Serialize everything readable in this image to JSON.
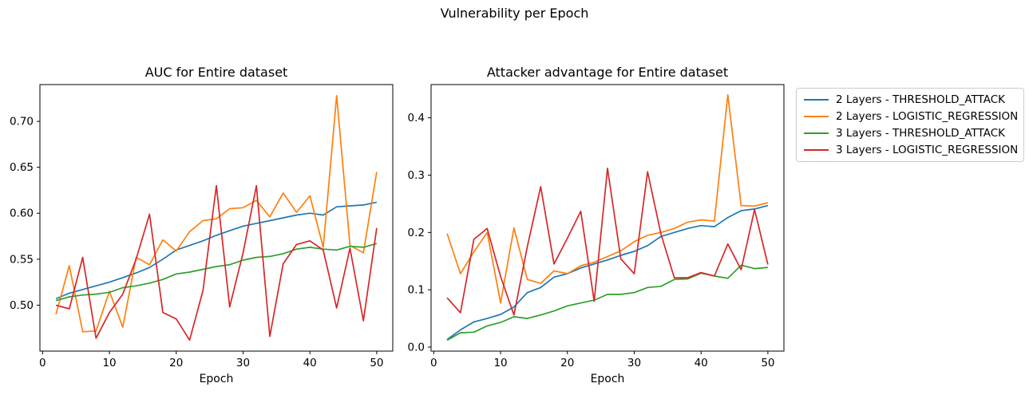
{
  "figure": {
    "suptitle": "Vulnerability per Epoch"
  },
  "legend": {
    "entries": [
      {
        "label": "2 Layers - THRESHOLD_ATTACK",
        "color": "#1f77b4"
      },
      {
        "label": "2 Layers - LOGISTIC_REGRESSION",
        "color": "#ff7f0e"
      },
      {
        "label": "3 Layers - THRESHOLD_ATTACK",
        "color": "#2ca02c"
      },
      {
        "label": "3 Layers - LOGISTIC_REGRESSION",
        "color": "#d62728"
      }
    ]
  },
  "chart_data": [
    {
      "type": "line",
      "title": "AUC for Entire dataset",
      "xlabel": "Epoch",
      "ylabel": "",
      "xlim": [
        -0.4,
        52.4
      ],
      "ylim": [
        0.45,
        0.74
      ],
      "xticks": [
        0,
        10,
        20,
        30,
        40,
        50
      ],
      "xticklabels": [
        "0",
        "10",
        "20",
        "30",
        "40",
        "50"
      ],
      "yticks": [
        0.5,
        0.55,
        0.6,
        0.65,
        0.7
      ],
      "yticklabels": [
        "0.50",
        "0.55",
        "0.60",
        "0.65",
        "0.70"
      ],
      "grid": false,
      "x": [
        2,
        4,
        6,
        8,
        10,
        12,
        14,
        16,
        18,
        20,
        22,
        24,
        26,
        28,
        30,
        32,
        34,
        36,
        38,
        40,
        42,
        44,
        46,
        48,
        50
      ],
      "series": [
        {
          "name": "2 Layers - THRESHOLD_ATTACK",
          "color": "#1f77b4",
          "values": [
            0.507,
            0.513,
            0.517,
            0.521,
            0.525,
            0.53,
            0.535,
            0.541,
            0.55,
            0.56,
            0.565,
            0.57,
            0.576,
            0.581,
            0.586,
            0.589,
            0.592,
            0.595,
            0.598,
            0.6,
            0.598,
            0.607,
            0.608,
            0.609,
            0.612
          ]
        },
        {
          "name": "2 Layers - LOGISTIC_REGRESSION",
          "color": "#ff7f0e",
          "values": [
            0.49,
            0.543,
            0.471,
            0.472,
            0.515,
            0.476,
            0.552,
            0.544,
            0.571,
            0.559,
            0.58,
            0.592,
            0.594,
            0.605,
            0.606,
            0.614,
            0.596,
            0.622,
            0.601,
            0.619,
            0.563,
            0.728,
            0.565,
            0.557,
            0.645
          ]
        },
        {
          "name": "3 Layers - THRESHOLD_ATTACK",
          "color": "#2ca02c",
          "values": [
            0.505,
            0.509,
            0.511,
            0.512,
            0.514,
            0.519,
            0.521,
            0.524,
            0.528,
            0.534,
            0.536,
            0.539,
            0.542,
            0.544,
            0.549,
            0.552,
            0.553,
            0.556,
            0.561,
            0.563,
            0.561,
            0.56,
            0.564,
            0.563,
            0.567
          ]
        },
        {
          "name": "3 Layers - LOGISTIC_REGRESSION",
          "color": "#d62728",
          "values": [
            0.5,
            0.496,
            0.552,
            0.464,
            0.492,
            0.512,
            0.55,
            0.599,
            0.492,
            0.485,
            0.462,
            0.516,
            0.63,
            0.498,
            0.557,
            0.63,
            0.466,
            0.545,
            0.566,
            0.57,
            0.56,
            0.497,
            0.562,
            0.483,
            0.584
          ]
        }
      ]
    },
    {
      "type": "line",
      "title": "Attacker advantage for Entire dataset",
      "xlabel": "Epoch",
      "ylabel": "",
      "xlim": [
        -0.4,
        52.4
      ],
      "ylim": [
        -0.007,
        0.458
      ],
      "xticks": [
        0,
        10,
        20,
        30,
        40,
        50
      ],
      "xticklabels": [
        "0",
        "10",
        "20",
        "30",
        "40",
        "50"
      ],
      "yticks": [
        0.0,
        0.1,
        0.2,
        0.3,
        0.4
      ],
      "yticklabels": [
        "0.0",
        "0.1",
        "0.2",
        "0.3",
        "0.4"
      ],
      "grid": false,
      "legend_position": "outside upper right",
      "x": [
        2,
        4,
        6,
        8,
        10,
        12,
        14,
        16,
        18,
        20,
        22,
        24,
        26,
        28,
        30,
        32,
        34,
        36,
        38,
        40,
        42,
        44,
        46,
        48,
        50
      ],
      "series": [
        {
          "name": "2 Layers - THRESHOLD_ATTACK",
          "color": "#1f77b4",
          "values": [
            0.013,
            0.03,
            0.044,
            0.05,
            0.057,
            0.07,
            0.095,
            0.104,
            0.122,
            0.128,
            0.138,
            0.145,
            0.152,
            0.16,
            0.167,
            0.177,
            0.193,
            0.2,
            0.207,
            0.212,
            0.21,
            0.226,
            0.238,
            0.241,
            0.247
          ]
        },
        {
          "name": "2 Layers - LOGISTIC_REGRESSION",
          "color": "#ff7f0e",
          "values": [
            0.198,
            0.128,
            0.166,
            0.2,
            0.077,
            0.208,
            0.118,
            0.111,
            0.133,
            0.128,
            0.142,
            0.148,
            0.158,
            0.168,
            0.184,
            0.195,
            0.2,
            0.207,
            0.218,
            0.222,
            0.22,
            0.44,
            0.247,
            0.246,
            0.252
          ]
        },
        {
          "name": "3 Layers - THRESHOLD_ATTACK",
          "color": "#2ca02c",
          "values": [
            0.012,
            0.025,
            0.026,
            0.037,
            0.043,
            0.053,
            0.05,
            0.056,
            0.063,
            0.072,
            0.077,
            0.082,
            0.092,
            0.092,
            0.095,
            0.104,
            0.106,
            0.118,
            0.119,
            0.129,
            0.124,
            0.12,
            0.143,
            0.137,
            0.139
          ]
        },
        {
          "name": "3 Layers - LOGISTIC_REGRESSION",
          "color": "#d62728",
          "values": [
            0.086,
            0.06,
            0.188,
            0.207,
            0.123,
            0.056,
            0.175,
            0.28,
            0.145,
            0.19,
            0.237,
            0.08,
            0.312,
            0.154,
            0.128,
            0.306,
            0.197,
            0.121,
            0.121,
            0.13,
            0.124,
            0.18,
            0.135,
            0.24,
            0.144
          ]
        }
      ]
    }
  ]
}
